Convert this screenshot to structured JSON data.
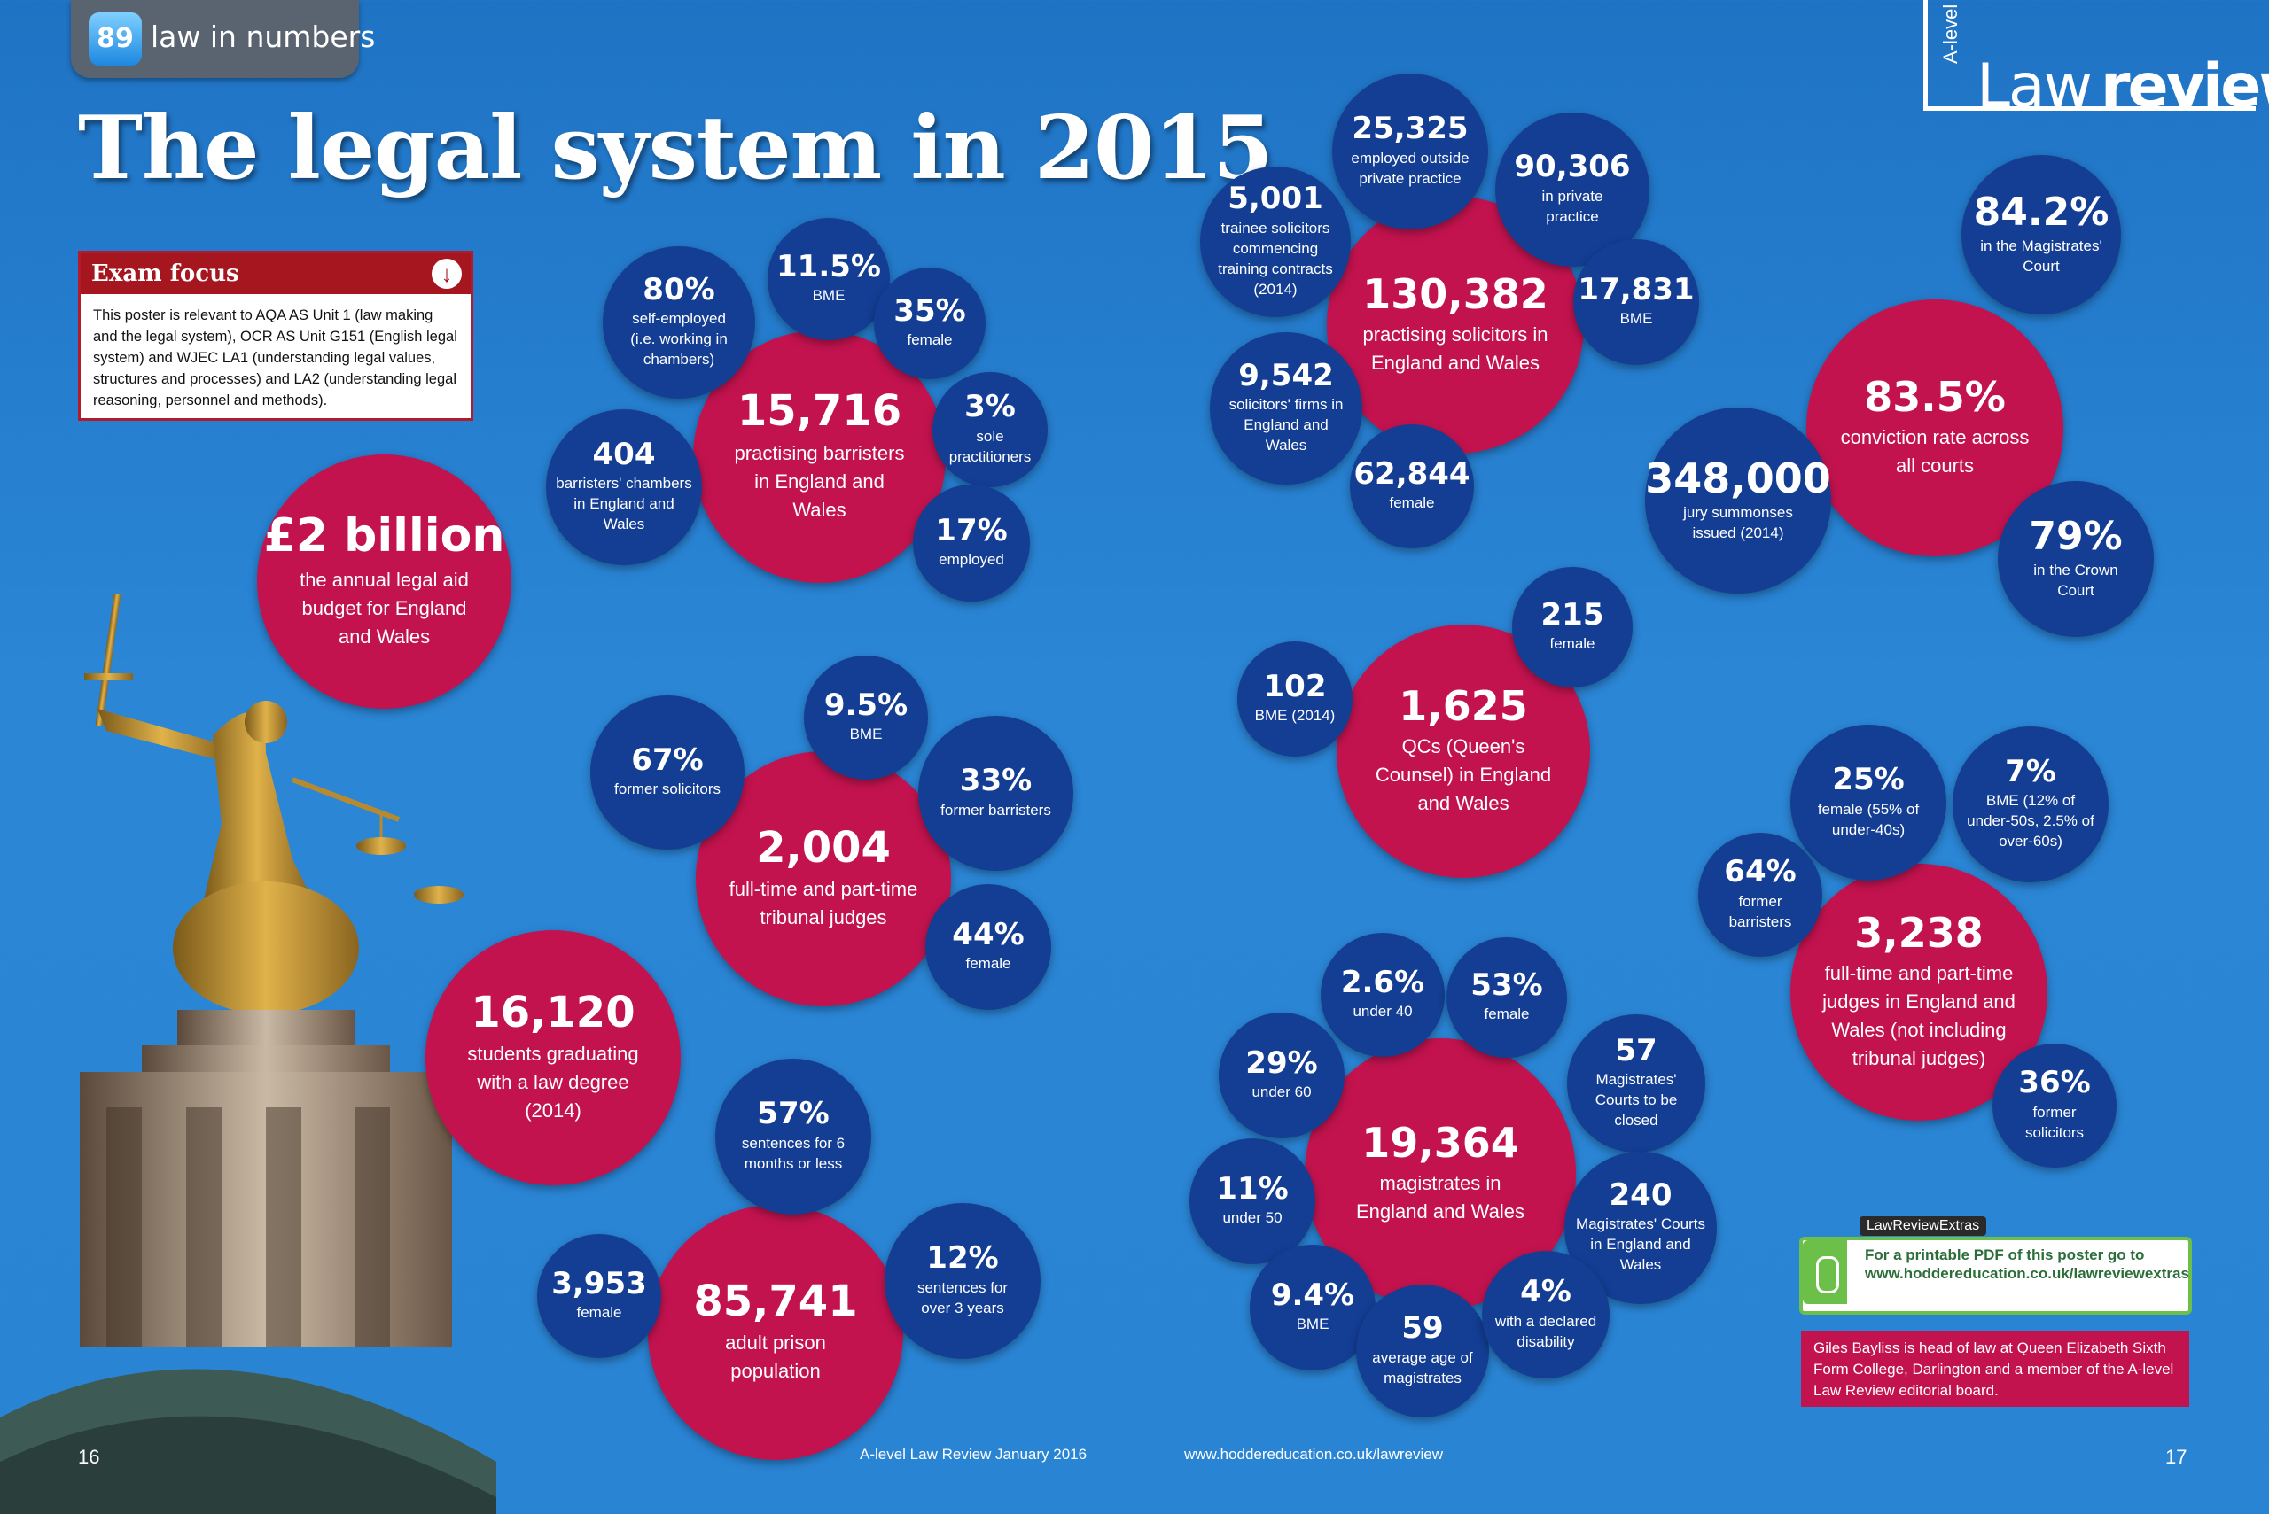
{
  "header": {
    "section_icon_text": "89",
    "section_label": "law in numbers",
    "title": "The legal system in 2015"
  },
  "logo": {
    "prefix": "A-level",
    "word1": "Law",
    "word2": "review"
  },
  "exam_focus": {
    "title": "Exam focus",
    "arrow_icon": "down-arrow-icon",
    "text": "This poster is relevant to AQA AS Unit 1 (law making and the legal system), OCR AS Unit G151 (English legal system) and WJEC LA1 (understanding legal values, structures and processes) and LA2 (understanding legal reasoning, personnel and methods)."
  },
  "colors": {
    "background": "#2a84d4",
    "red_bubble": "#c3134f",
    "blue_bubble": "#133e94",
    "extras_green": "#6cc04a"
  },
  "bubbles": {
    "legal_aid": {
      "value": "£2 billion",
      "label": "the annual legal aid budget for England and Wales"
    },
    "barristers": {
      "value": "15,716",
      "label": "practising barristers in England and Wales"
    },
    "barr_selfemp": {
      "value": "80%",
      "label": "self-employed (i.e. working in chambers)"
    },
    "barr_bme": {
      "value": "11.5%",
      "label": "BME"
    },
    "barr_female": {
      "value": "35%",
      "label": "female"
    },
    "barr_sole": {
      "value": "3%",
      "label": "sole practitioners"
    },
    "barr_employed": {
      "value": "17%",
      "label": "employed"
    },
    "chambers": {
      "value": "404",
      "label": "barristers' chambers in England and Wales"
    },
    "tribunal": {
      "value": "2,004",
      "label": "full-time and part-time tribunal judges"
    },
    "trib_bme": {
      "value": "9.5%",
      "label": "BME"
    },
    "trib_sol": {
      "value": "67%",
      "label": "former solicitors"
    },
    "trib_barr": {
      "value": "33%",
      "label": "former barristers"
    },
    "trib_female": {
      "value": "44%",
      "label": "female"
    },
    "students": {
      "value": "16,120",
      "label": "students graduating with a law degree (2014)"
    },
    "prison": {
      "value": "85,741",
      "label": "adult prison population"
    },
    "prison_6m": {
      "value": "57%",
      "label": "sentences for 6 months or less"
    },
    "prison_female": {
      "value": "3,953",
      "label": "female"
    },
    "prison_3y": {
      "value": "12%",
      "label": "sentences for over 3 years"
    },
    "solicitors": {
      "value": "130,382",
      "label": "practising solicitors in England and Wales"
    },
    "sol_outside": {
      "value": "25,325",
      "label": "employed outside private practice"
    },
    "sol_private": {
      "value": "90,306",
      "label": "in private practice"
    },
    "sol_trainee": {
      "value": "5,001",
      "label": "trainee solicitors commencing training contracts (2014)"
    },
    "sol_bme": {
      "value": "17,831",
      "label": "BME"
    },
    "sol_firms": {
      "value": "9,542",
      "label": "solicitors' firms in England and Wales"
    },
    "sol_female": {
      "value": "62,844",
      "label": "female"
    },
    "qcs": {
      "value": "1,625",
      "label": "QCs (Queen's Counsel) in England and Wales"
    },
    "qc_female": {
      "value": "215",
      "label": "female"
    },
    "qc_bme": {
      "value": "102",
      "label": "BME (2014)"
    },
    "conviction": {
      "value": "83.5%",
      "label": "conviction rate across all courts"
    },
    "conv_mag": {
      "value": "84.2%",
      "label": "in the Magistrates' Court"
    },
    "conv_crown": {
      "value": "79%",
      "label": "in the Crown Court"
    },
    "jury": {
      "value": "348,000",
      "label": "jury summonses issued (2014)"
    },
    "judges": {
      "value": "3,238",
      "label": "full-time and part-time judges in England and Wales (not including tribunal judges)"
    },
    "judge_female": {
      "value": "25%",
      "label": "female (55% of under-40s)"
    },
    "judge_bme": {
      "value": "7%",
      "label": "BME (12% of under-50s, 2.5% of over-60s)"
    },
    "judge_barr": {
      "value": "64%",
      "label": "former barristers"
    },
    "judge_sol": {
      "value": "36%",
      "label": "former solicitors"
    },
    "magistrates": {
      "value": "19,364",
      "label": "magistrates in England and Wales"
    },
    "mag_u40": {
      "value": "2.6%",
      "label": "under 40"
    },
    "mag_female": {
      "value": "53%",
      "label": "female"
    },
    "mag_u60": {
      "value": "29%",
      "label": "under 60"
    },
    "mag_closed": {
      "value": "57",
      "label": "Magistrates' Courts to be closed"
    },
    "mag_u50": {
      "value": "11%",
      "label": "under 50"
    },
    "mag_courts": {
      "value": "240",
      "label": "Magistrates' Courts in England and Wales"
    },
    "mag_bme": {
      "value": "9.4%",
      "label": "BME"
    },
    "mag_age": {
      "value": "59",
      "label": "average age of magistrates"
    },
    "mag_disab": {
      "value": "4%",
      "label": "with a declared disability"
    }
  },
  "extras": {
    "tag": "LawReviewExtras",
    "icon": "mouse-icon",
    "text": "For a printable PDF of this poster go to www.hoddereducation.co.uk/lawreviewextras"
  },
  "bio": "Giles Bayliss is head of law at Queen Elizabeth Sixth Form College, Darlington and a member of the A-level Law Review editorial board.",
  "footer": {
    "page_left": "16",
    "magazine": "A-level Law Review January 2016",
    "url": "www.hoddereducation.co.uk/lawreview",
    "page_right": "17"
  }
}
